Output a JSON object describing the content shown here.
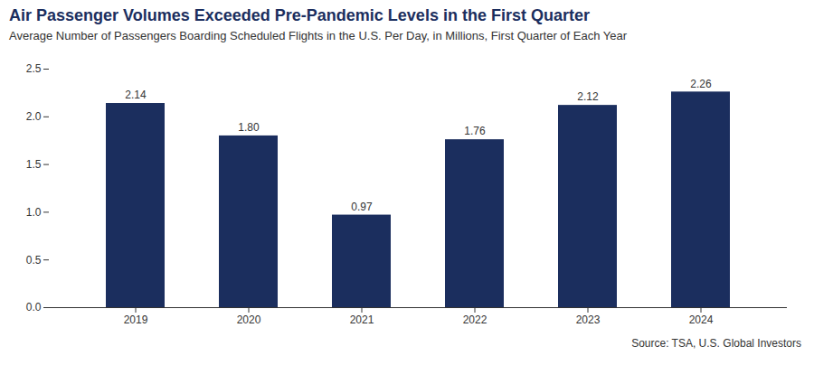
{
  "chart_data": {
    "type": "bar",
    "title": "Air Passenger Volumes Exceeded Pre-Pandemic Levels in the First Quarter",
    "subtitle": "Average Number of Passengers Boarding Scheduled Flights in the U.S. Per Day, in Millions, First Quarter of Each Year",
    "annotation": "Source: TSA, U.S. Global Investors",
    "categories": [
      "2019",
      "2020",
      "2021",
      "2022",
      "2023",
      "2024"
    ],
    "values": [
      2.14,
      1.8,
      0.97,
      1.76,
      2.12,
      2.26
    ],
    "value_labels": [
      "2.14",
      "1.80",
      "0.97",
      "1.76",
      "2.12",
      "2.26"
    ],
    "data_labels": true,
    "color": "#1b2e5e",
    "ylim": [
      0,
      2.5
    ],
    "yticks": [
      {
        "value": 0,
        "label": "0.0"
      },
      0.5,
      {
        "value": 1.0,
        "label": "1.0"
      },
      1.5,
      {
        "value": 2.0,
        "label": "2.0"
      },
      2.5
    ],
    "grid": false
  }
}
